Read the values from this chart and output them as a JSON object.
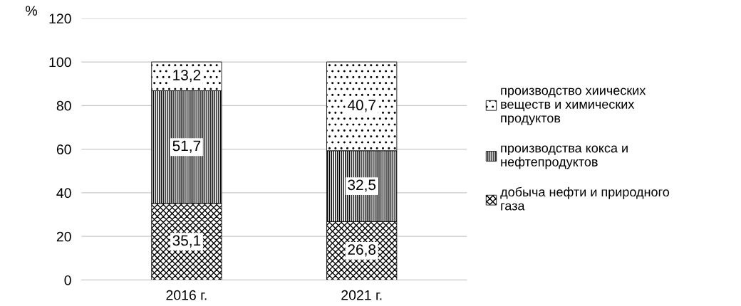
{
  "chart_data": {
    "type": "bar",
    "stacked": true,
    "ylabel": "%",
    "categories": [
      "2016 г.",
      "2021 г."
    ],
    "series": [
      {
        "name": "добыча нефти и природного газа",
        "color": "#000000",
        "values": [
          35.1,
          26.8
        ]
      },
      {
        "name": "производства кокса и нефтепродуктов",
        "color": "#000000",
        "values": [
          51.7,
          32.5
        ]
      },
      {
        "name": "производство хиических веществ и химических продуктов",
        "color": "#000000",
        "values": [
          13.2,
          40.7
        ]
      }
    ],
    "value_labels": [
      [
        "35,1",
        "26,8"
      ],
      [
        "51,7",
        "32,5"
      ],
      [
        "13,2",
        "40,7"
      ]
    ],
    "ylim": [
      0,
      120
    ],
    "yticks": [
      0,
      20,
      40,
      60,
      80,
      100,
      120
    ],
    "grid": "y",
    "legend": "right"
  }
}
